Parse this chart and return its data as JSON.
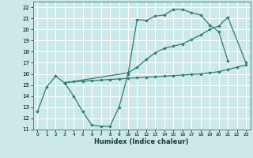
{
  "xlabel": "Humidex (Indice chaleur)",
  "xlim": [
    -0.5,
    23.5
  ],
  "ylim": [
    11,
    22.5
  ],
  "xticks": [
    0,
    1,
    2,
    3,
    4,
    5,
    6,
    7,
    8,
    9,
    10,
    11,
    12,
    13,
    14,
    15,
    16,
    17,
    18,
    19,
    20,
    21,
    22,
    23
  ],
  "yticks": [
    11,
    12,
    13,
    14,
    15,
    16,
    17,
    18,
    19,
    20,
    21,
    22
  ],
  "bg_color": "#cce8e8",
  "grid_color": "#ffffff",
  "line_color": "#2e7d6e",
  "curve1_x": [
    0,
    1,
    2,
    3,
    4,
    5,
    6,
    7,
    8,
    9,
    10,
    11,
    12,
    13,
    14,
    15,
    16,
    17,
    18,
    19,
    20,
    21
  ],
  "curve1_y": [
    12.6,
    14.8,
    15.8,
    15.2,
    14.0,
    12.6,
    11.4,
    11.3,
    11.3,
    13.0,
    16.0,
    20.9,
    20.8,
    21.2,
    21.3,
    21.8,
    21.8,
    21.5,
    21.3,
    20.4,
    19.8,
    17.2
  ],
  "curve2_x": [
    3,
    4,
    5,
    6,
    7,
    8,
    9,
    10,
    11,
    12,
    13,
    14,
    15,
    16,
    17,
    18,
    19,
    20,
    21,
    22,
    23
  ],
  "curve2_y": [
    15.2,
    15.3,
    15.35,
    15.4,
    15.45,
    15.5,
    15.55,
    15.6,
    15.65,
    15.7,
    15.75,
    15.8,
    15.85,
    15.9,
    15.95,
    16.0,
    16.1,
    16.2,
    16.4,
    16.6,
    16.8
  ],
  "curve3_x": [
    3,
    10,
    11,
    12,
    13,
    14,
    15,
    16,
    17,
    18,
    19,
    20,
    21,
    23
  ],
  "curve3_y": [
    15.2,
    16.1,
    16.6,
    17.3,
    17.9,
    18.3,
    18.5,
    18.7,
    19.1,
    19.5,
    20.0,
    20.3,
    21.1,
    17.0
  ]
}
